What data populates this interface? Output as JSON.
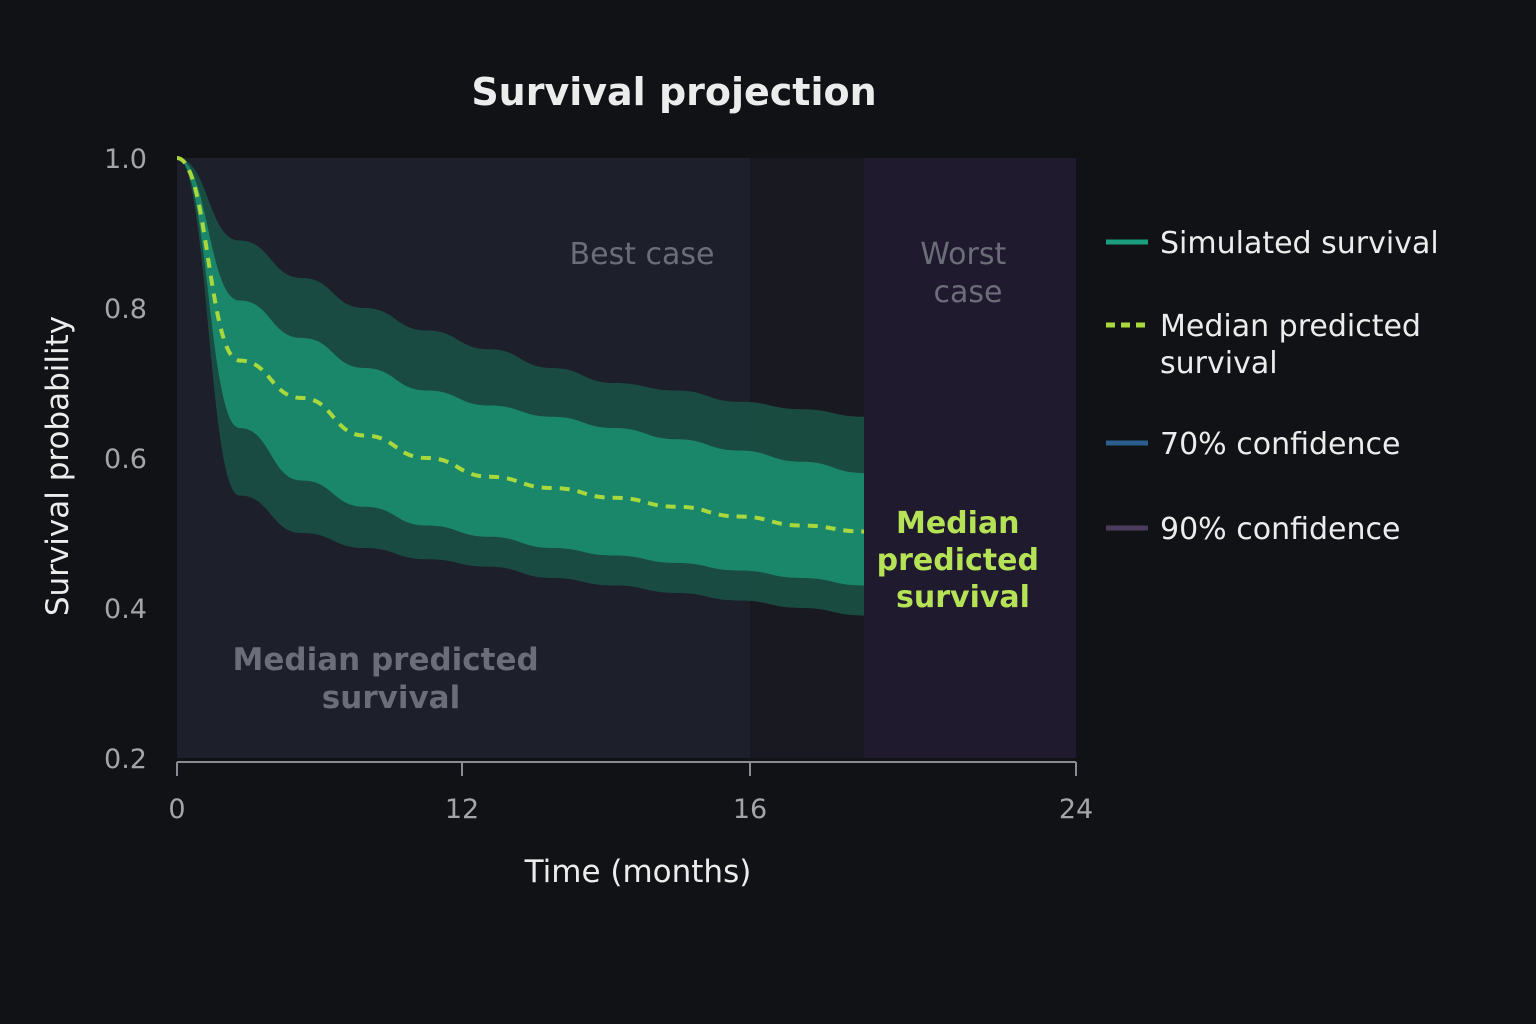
{
  "chart_data": {
    "type": "area",
    "title": "Survival projection",
    "xlabel": "Time (months)",
    "ylabel": "Survival probability",
    "x_ticks": [
      "0",
      "12",
      "16",
      "24"
    ],
    "y_ticks": [
      "1.0",
      "0.8",
      "0.6",
      "0.4",
      "0.2"
    ],
    "ylim": [
      0.2,
      1.0
    ],
    "grid": false,
    "legend_position": "right",
    "regions": [
      {
        "label": "Best case",
        "from_tick": 12,
        "to_tick": 16
      },
      {
        "label": "Worst case",
        "from_tick": 16,
        "to_tick": 24
      }
    ],
    "annotations": [
      {
        "text": "Median predicted survival",
        "color": "#6b6d78"
      },
      {
        "text": "Median predicted survival",
        "color": "#b6e356"
      }
    ],
    "series": [
      {
        "name": "Median predicted survival",
        "style": "dashed",
        "color": "#a8d83c",
        "values": [
          1.0,
          0.73,
          0.68,
          0.63,
          0.6,
          0.575,
          0.56,
          0.547,
          0.535,
          0.522,
          0.51,
          0.502
        ]
      },
      {
        "name": "70% confidence",
        "color": "#1a8a6e",
        "lower": [
          1.0,
          0.64,
          0.57,
          0.535,
          0.51,
          0.495,
          0.48,
          0.47,
          0.46,
          0.45,
          0.44,
          0.43
        ],
        "upper": [
          1.0,
          0.81,
          0.76,
          0.72,
          0.69,
          0.67,
          0.655,
          0.64,
          0.625,
          0.61,
          0.595,
          0.58
        ]
      },
      {
        "name": "90% confidence",
        "color": "#1a4e43",
        "lower": [
          1.0,
          0.55,
          0.5,
          0.48,
          0.465,
          0.455,
          0.44,
          0.43,
          0.42,
          0.41,
          0.4,
          0.39
        ],
        "upper": [
          1.0,
          0.89,
          0.84,
          0.8,
          0.77,
          0.745,
          0.72,
          0.7,
          0.69,
          0.675,
          0.665,
          0.655
        ]
      }
    ],
    "legend": [
      {
        "label": "Simulated survival",
        "color": "#1a9e7e",
        "style": "solid"
      },
      {
        "label": "Median predicted\nsurvival",
        "color": "#a8d83c",
        "style": "dashed"
      },
      {
        "label": "70% confidence",
        "color": "#2b5d8f",
        "style": "solid"
      },
      {
        "label": "90% confidence",
        "color": "#4c3b5d",
        "style": "solid"
      }
    ],
    "colors": {
      "background": "#111215",
      "plot_background": "#1d1f2a",
      "best_case_region": "#191a21",
      "worst_case_region": "#1f1a2e"
    }
  }
}
